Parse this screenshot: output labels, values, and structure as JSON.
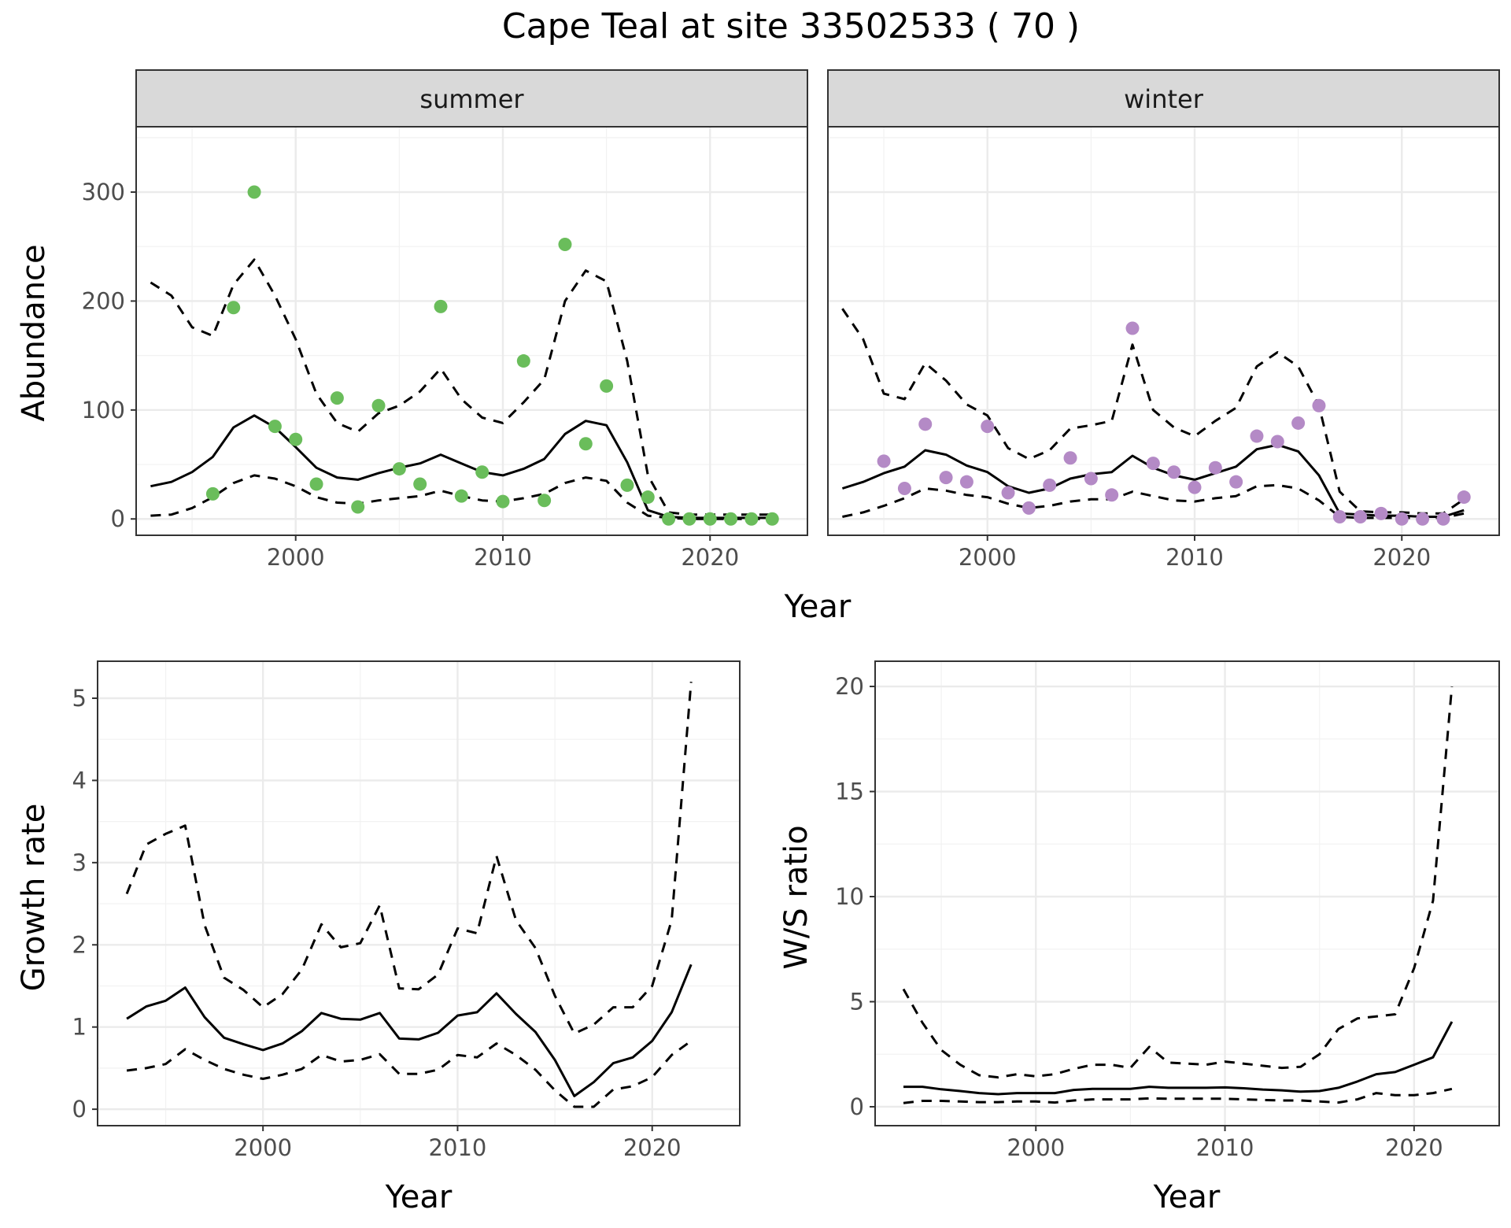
{
  "title": "Cape Teal at site 33502533 ( 70 )",
  "chart_data": [
    {
      "type": "line",
      "panel": "summer",
      "strip_label": "summer",
      "xlabel": "Year",
      "ylabel": "Abundance",
      "xlim": [
        1992.3,
        2024.7
      ],
      "ylim": [
        -15,
        360
      ],
      "xticks": [
        2000,
        2010,
        2020
      ],
      "yticks": [
        0,
        100,
        200,
        300
      ],
      "point_color": "#6abd5b",
      "x": [
        1993,
        1994,
        1995,
        1996,
        1997,
        1998,
        1999,
        2000,
        2001,
        2002,
        2003,
        2004,
        2005,
        2006,
        2007,
        2008,
        2009,
        2010,
        2011,
        2012,
        2013,
        2014,
        2015,
        2016,
        2017,
        2018,
        2019,
        2020,
        2021,
        2022,
        2023
      ],
      "mean": [
        30,
        34,
        43,
        57,
        84,
        95,
        84,
        66,
        47,
        38,
        36,
        42,
        47,
        51,
        59,
        51,
        43,
        40,
        46,
        55,
        78,
        90,
        86,
        52,
        8,
        2,
        1,
        1,
        1,
        1,
        1
      ],
      "upper": [
        217,
        205,
        176,
        168,
        215,
        238,
        205,
        165,
        115,
        88,
        80,
        97,
        104,
        117,
        138,
        110,
        93,
        88,
        107,
        128,
        200,
        228,
        218,
        145,
        40,
        6,
        4,
        4,
        4,
        4,
        4
      ],
      "lower": [
        3,
        4,
        10,
        20,
        33,
        40,
        37,
        30,
        20,
        15,
        14,
        17,
        19,
        21,
        26,
        21,
        17,
        16,
        19,
        23,
        33,
        38,
        35,
        15,
        3,
        1,
        0,
        0,
        0,
        0,
        0
      ],
      "points": [
        {
          "x": 1996,
          "y": 23
        },
        {
          "x": 1997,
          "y": 194
        },
        {
          "x": 1998,
          "y": 300
        },
        {
          "x": 1999,
          "y": 85
        },
        {
          "x": 2000,
          "y": 73
        },
        {
          "x": 2001,
          "y": 32
        },
        {
          "x": 2002,
          "y": 111
        },
        {
          "x": 2003,
          "y": 11
        },
        {
          "x": 2004,
          "y": 104
        },
        {
          "x": 2005,
          "y": 46
        },
        {
          "x": 2006,
          "y": 32
        },
        {
          "x": 2007,
          "y": 195
        },
        {
          "x": 2008,
          "y": 21
        },
        {
          "x": 2009,
          "y": 43
        },
        {
          "x": 2010,
          "y": 16
        },
        {
          "x": 2011,
          "y": 145
        },
        {
          "x": 2012,
          "y": 17
        },
        {
          "x": 2013,
          "y": 252
        },
        {
          "x": 2014,
          "y": 69
        },
        {
          "x": 2015,
          "y": 122
        },
        {
          "x": 2016,
          "y": 31
        },
        {
          "x": 2017,
          "y": 20
        },
        {
          "x": 2018,
          "y": 0
        },
        {
          "x": 2019,
          "y": 0
        },
        {
          "x": 2020,
          "y": 0
        },
        {
          "x": 2021,
          "y": 0
        },
        {
          "x": 2022,
          "y": 0
        },
        {
          "x": 2023,
          "y": 0
        }
      ]
    },
    {
      "type": "line",
      "panel": "winter",
      "strip_label": "winter",
      "xlabel": "Year",
      "ylabel": "",
      "xlim": [
        1992.3,
        2024.7
      ],
      "ylim": [
        -15,
        360
      ],
      "xticks": [
        2000,
        2010,
        2020
      ],
      "yticks": [
        0,
        100,
        200,
        300
      ],
      "point_color": "#b48ac6",
      "x": [
        1993,
        1994,
        1995,
        1996,
        1997,
        1998,
        1999,
        2000,
        2001,
        2002,
        2003,
        2004,
        2005,
        2006,
        2007,
        2008,
        2009,
        2010,
        2011,
        2012,
        2013,
        2014,
        2015,
        2016,
        2017,
        2018,
        2019,
        2020,
        2021,
        2022,
        2023
      ],
      "mean": [
        28,
        34,
        42,
        48,
        63,
        59,
        49,
        43,
        30,
        24,
        28,
        37,
        41,
        43,
        58,
        47,
        40,
        36,
        42,
        48,
        64,
        68,
        62,
        40,
        5,
        4,
        3,
        3,
        2,
        2,
        8
      ],
      "upper": [
        193,
        165,
        115,
        110,
        143,
        127,
        105,
        95,
        65,
        55,
        63,
        83,
        86,
        90,
        160,
        100,
        84,
        76,
        90,
        102,
        140,
        153,
        140,
        104,
        25,
        7,
        6,
        6,
        5,
        5,
        18
      ],
      "lower": [
        2,
        6,
        12,
        19,
        28,
        26,
        22,
        20,
        14,
        10,
        12,
        16,
        18,
        18,
        25,
        21,
        17,
        16,
        19,
        21,
        30,
        31,
        28,
        17,
        2,
        1,
        1,
        1,
        1,
        1,
        5
      ],
      "points": [
        {
          "x": 1995,
          "y": 53
        },
        {
          "x": 1996,
          "y": 28
        },
        {
          "x": 1997,
          "y": 87
        },
        {
          "x": 1998,
          "y": 38
        },
        {
          "x": 1999,
          "y": 34
        },
        {
          "x": 2000,
          "y": 85
        },
        {
          "x": 2001,
          "y": 24
        },
        {
          "x": 2002,
          "y": 10
        },
        {
          "x": 2003,
          "y": 31
        },
        {
          "x": 2004,
          "y": 56
        },
        {
          "x": 2005,
          "y": 37
        },
        {
          "x": 2006,
          "y": 22
        },
        {
          "x": 2007,
          "y": 175
        },
        {
          "x": 2008,
          "y": 51
        },
        {
          "x": 2009,
          "y": 43
        },
        {
          "x": 2010,
          "y": 29
        },
        {
          "x": 2011,
          "y": 47
        },
        {
          "x": 2012,
          "y": 34
        },
        {
          "x": 2013,
          "y": 76
        },
        {
          "x": 2014,
          "y": 71
        },
        {
          "x": 2015,
          "y": 88
        },
        {
          "x": 2016,
          "y": 104
        },
        {
          "x": 2017,
          "y": 2
        },
        {
          "x": 2018,
          "y": 2
        },
        {
          "x": 2019,
          "y": 5
        },
        {
          "x": 2020,
          "y": 0
        },
        {
          "x": 2021,
          "y": 0
        },
        {
          "x": 2022,
          "y": 0
        },
        {
          "x": 2023,
          "y": 20
        }
      ]
    },
    {
      "type": "line",
      "panel": "growth",
      "xlabel": "Year",
      "ylabel": "Growth rate",
      "xlim": [
        1991.5,
        2024.5
      ],
      "ylim": [
        -0.2,
        5.45
      ],
      "xticks": [
        2000,
        2010,
        2020
      ],
      "yticks": [
        0,
        1,
        2,
        3,
        4,
        5
      ],
      "x": [
        1993,
        1994,
        1995,
        1996,
        1997,
        1998,
        1999,
        2000,
        2001,
        2002,
        2003,
        2004,
        2005,
        2006,
        2007,
        2008,
        2009,
        2010,
        2011,
        2012,
        2013,
        2014,
        2015,
        2016,
        2017,
        2018,
        2019,
        2020,
        2021,
        2022
      ],
      "mean": [
        1.1,
        1.25,
        1.32,
        1.48,
        1.12,
        0.87,
        0.79,
        0.72,
        0.8,
        0.95,
        1.17,
        1.1,
        1.09,
        1.17,
        0.86,
        0.85,
        0.93,
        1.14,
        1.18,
        1.41,
        1.16,
        0.94,
        0.6,
        0.16,
        0.33,
        0.56,
        0.63,
        0.83,
        1.18,
        1.76
      ],
      "upper": [
        2.62,
        3.22,
        3.35,
        3.45,
        2.24,
        1.6,
        1.45,
        1.24,
        1.4,
        1.7,
        2.25,
        1.97,
        2.02,
        2.48,
        1.47,
        1.46,
        1.64,
        2.2,
        2.14,
        3.08,
        2.3,
        1.96,
        1.38,
        0.92,
        1.03,
        1.24,
        1.24,
        1.5,
        2.3,
        5.2
      ],
      "lower": [
        0.47,
        0.5,
        0.55,
        0.73,
        0.6,
        0.49,
        0.42,
        0.37,
        0.42,
        0.49,
        0.66,
        0.58,
        0.6,
        0.67,
        0.43,
        0.43,
        0.48,
        0.66,
        0.63,
        0.8,
        0.66,
        0.48,
        0.23,
        0.03,
        0.03,
        0.24,
        0.28,
        0.39,
        0.66,
        0.83
      ]
    },
    {
      "type": "line",
      "panel": "ratio",
      "xlabel": "Year",
      "ylabel": "W/S ratio",
      "xlim": [
        1991.5,
        2024.5
      ],
      "ylim": [
        -0.9,
        21.2
      ],
      "xticks": [
        2000,
        2010,
        2020
      ],
      "yticks": [
        0,
        5,
        10,
        15,
        20
      ],
      "x": [
        1993,
        1994,
        1995,
        1996,
        1997,
        1998,
        1999,
        2000,
        2001,
        2002,
        2003,
        2004,
        2005,
        2006,
        2007,
        2008,
        2009,
        2010,
        2011,
        2012,
        2013,
        2014,
        2015,
        2016,
        2017,
        2018,
        2019,
        2020,
        2021,
        2022
      ],
      "mean": [
        0.95,
        0.95,
        0.83,
        0.75,
        0.65,
        0.6,
        0.65,
        0.65,
        0.65,
        0.8,
        0.85,
        0.85,
        0.85,
        0.95,
        0.9,
        0.9,
        0.9,
        0.92,
        0.88,
        0.82,
        0.78,
        0.72,
        0.75,
        0.9,
        1.2,
        1.55,
        1.65,
        2.0,
        2.35,
        4.05
      ],
      "upper": [
        5.6,
        4.0,
        2.7,
        2.0,
        1.5,
        1.4,
        1.55,
        1.45,
        1.55,
        1.8,
        2.0,
        2.0,
        1.85,
        2.85,
        2.1,
        2.05,
        2.0,
        2.15,
        2.05,
        1.95,
        1.85,
        1.9,
        2.5,
        3.7,
        4.2,
        4.3,
        4.4,
        6.6,
        9.8,
        20.0
      ],
      "lower": [
        0.18,
        0.28,
        0.28,
        0.25,
        0.22,
        0.22,
        0.25,
        0.25,
        0.2,
        0.3,
        0.35,
        0.35,
        0.35,
        0.4,
        0.38,
        0.38,
        0.38,
        0.38,
        0.35,
        0.32,
        0.3,
        0.3,
        0.25,
        0.2,
        0.35,
        0.65,
        0.55,
        0.55,
        0.65,
        0.85
      ]
    }
  ]
}
